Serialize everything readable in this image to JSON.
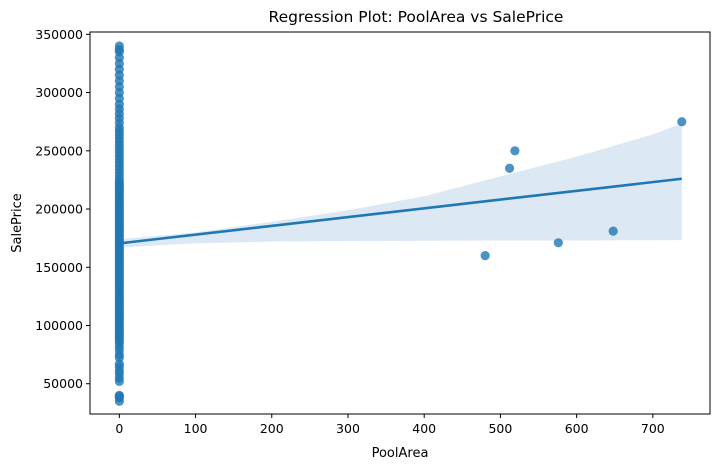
{
  "chart_data": {
    "type": "scatter",
    "title": "Regression Plot: PoolArea vs SalePrice",
    "xlabel": "PoolArea",
    "ylabel": "SalePrice",
    "xlim": [
      -38.5,
      775
    ],
    "ylim": [
      24000,
      352000
    ],
    "x_ticks": [
      0,
      100,
      200,
      300,
      400,
      500,
      600,
      700
    ],
    "x_tick_labels": [
      "0",
      "100",
      "200",
      "300",
      "400",
      "500",
      "600",
      "700"
    ],
    "y_ticks": [
      50000,
      100000,
      150000,
      200000,
      250000,
      300000,
      350000
    ],
    "y_tick_labels": [
      "50000",
      "100000",
      "150000",
      "200000",
      "250000",
      "300000",
      "350000"
    ],
    "grid": false,
    "legend": "none",
    "color": "#1f77b4",
    "band_color": "#dce8f3",
    "points": [
      {
        "x": 480,
        "y": 160000
      },
      {
        "x": 512,
        "y": 235000
      },
      {
        "x": 519,
        "y": 250000
      },
      {
        "x": 576,
        "y": 171000
      },
      {
        "x": 648,
        "y": 181000
      },
      {
        "x": 738,
        "y": 274970
      }
    ],
    "zero_x_points_y": [
      34900,
      37900,
      39300,
      40000,
      52000,
      55000,
      58500,
      61000,
      64500,
      67000,
      72500,
      75000,
      79000,
      82000,
      85000,
      87000,
      89500,
      91000,
      93000,
      95000,
      97000,
      99000,
      101000,
      103000,
      105000,
      107000,
      109000,
      111000,
      113000,
      115000,
      117000,
      119000,
      121000,
      123000,
      125000,
      127000,
      129000,
      131000,
      133000,
      135000,
      137000,
      139000,
      141000,
      143000,
      145000,
      147000,
      149000,
      151000,
      153000,
      155000,
      157000,
      159000,
      161000,
      163000,
      165000,
      167000,
      169000,
      171000,
      173000,
      175000,
      177000,
      179000,
      181000,
      183000,
      185000,
      187000,
      189000,
      191000,
      193000,
      195000,
      197000,
      199000,
      201000,
      203000,
      205000,
      207000,
      209000,
      211000,
      213000,
      215000,
      217000,
      219000,
      221000,
      223000,
      225000,
      228000,
      231000,
      234000,
      237000,
      240000,
      243000,
      246000,
      249000,
      252000,
      255000,
      258000,
      261000,
      264000,
      267000,
      270000,
      274000,
      278000,
      282000,
      286000,
      290000,
      295000,
      300000,
      305000,
      310000,
      315000,
      320000,
      325000,
      330000,
      335000,
      337000,
      340000
    ],
    "regression_line": {
      "x": [
        0,
        738
      ],
      "y": [
        170500,
        226000
      ]
    },
    "confidence_band": {
      "x": [
        0,
        100,
        200,
        300,
        400,
        500,
        600,
        700,
        738
      ],
      "upper": [
        174000,
        180000,
        189000,
        199000,
        211000,
        228000,
        245000,
        264000,
        273500
      ],
      "lower": [
        167000,
        170500,
        172000,
        172500,
        172800,
        173000,
        173000,
        173200,
        173300
      ]
    }
  }
}
